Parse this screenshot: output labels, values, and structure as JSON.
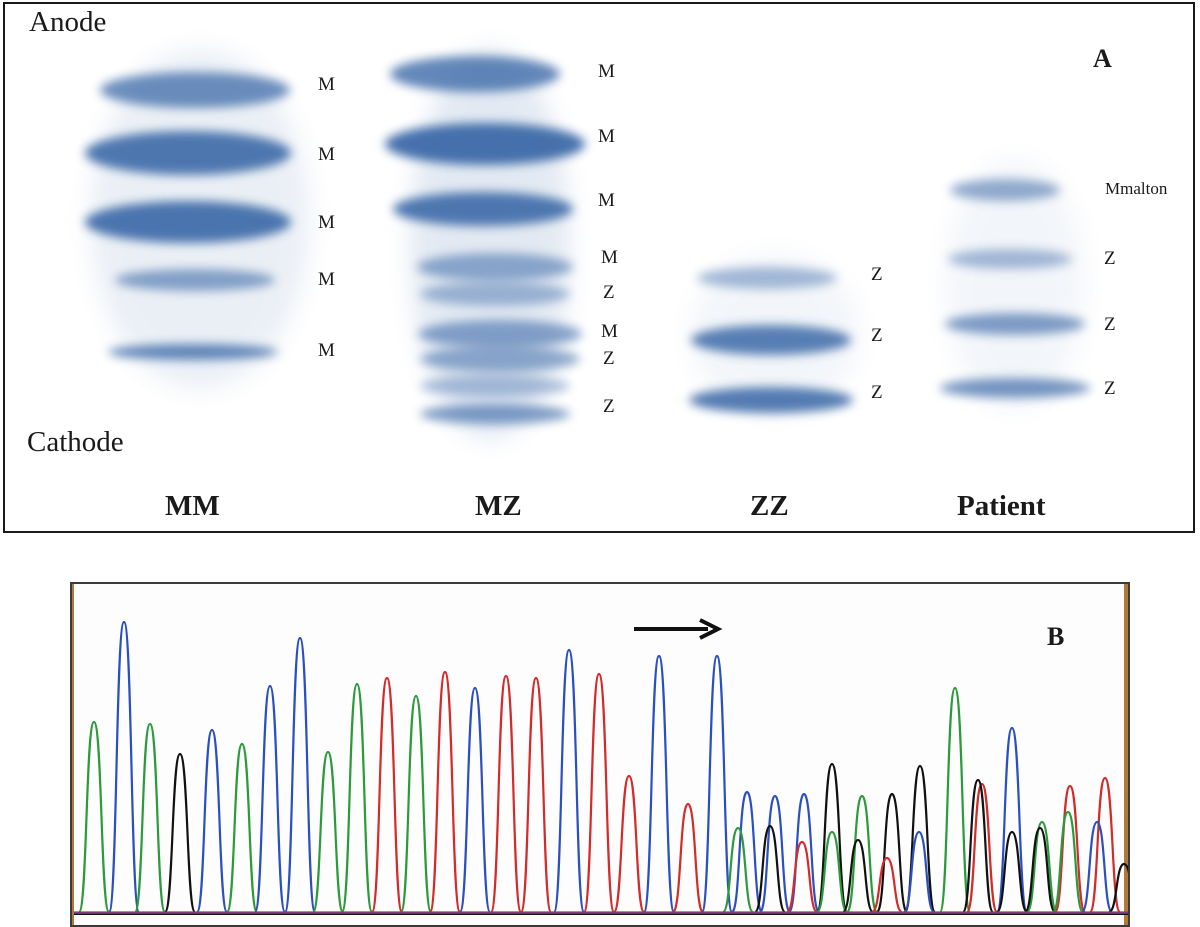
{
  "gel": {
    "panel_label": "A",
    "anode_label": "Anode",
    "cathode_label": "Cathode",
    "band_color": "#3d6aa8",
    "lanes": [
      {
        "name": "MM",
        "bands": [
          "M",
          "M",
          "M",
          "M",
          "M"
        ]
      },
      {
        "name": "MZ",
        "bands": [
          "M",
          "M",
          "M",
          "M",
          "Z",
          "M",
          "Z",
          "Z"
        ]
      },
      {
        "name": "ZZ",
        "bands": [
          "Z",
          "Z",
          "Z"
        ]
      },
      {
        "name": "Patient",
        "bands": [
          "Mmalton",
          "Z",
          "Z",
          "Z"
        ]
      }
    ]
  },
  "chromatogram": {
    "panel_label": "B",
    "arrow": "right-arrow",
    "colors": {
      "A": "#2a9a3a",
      "C": "#2a4fc0",
      "G": "#111111",
      "T": "#d42a2a"
    }
  }
}
